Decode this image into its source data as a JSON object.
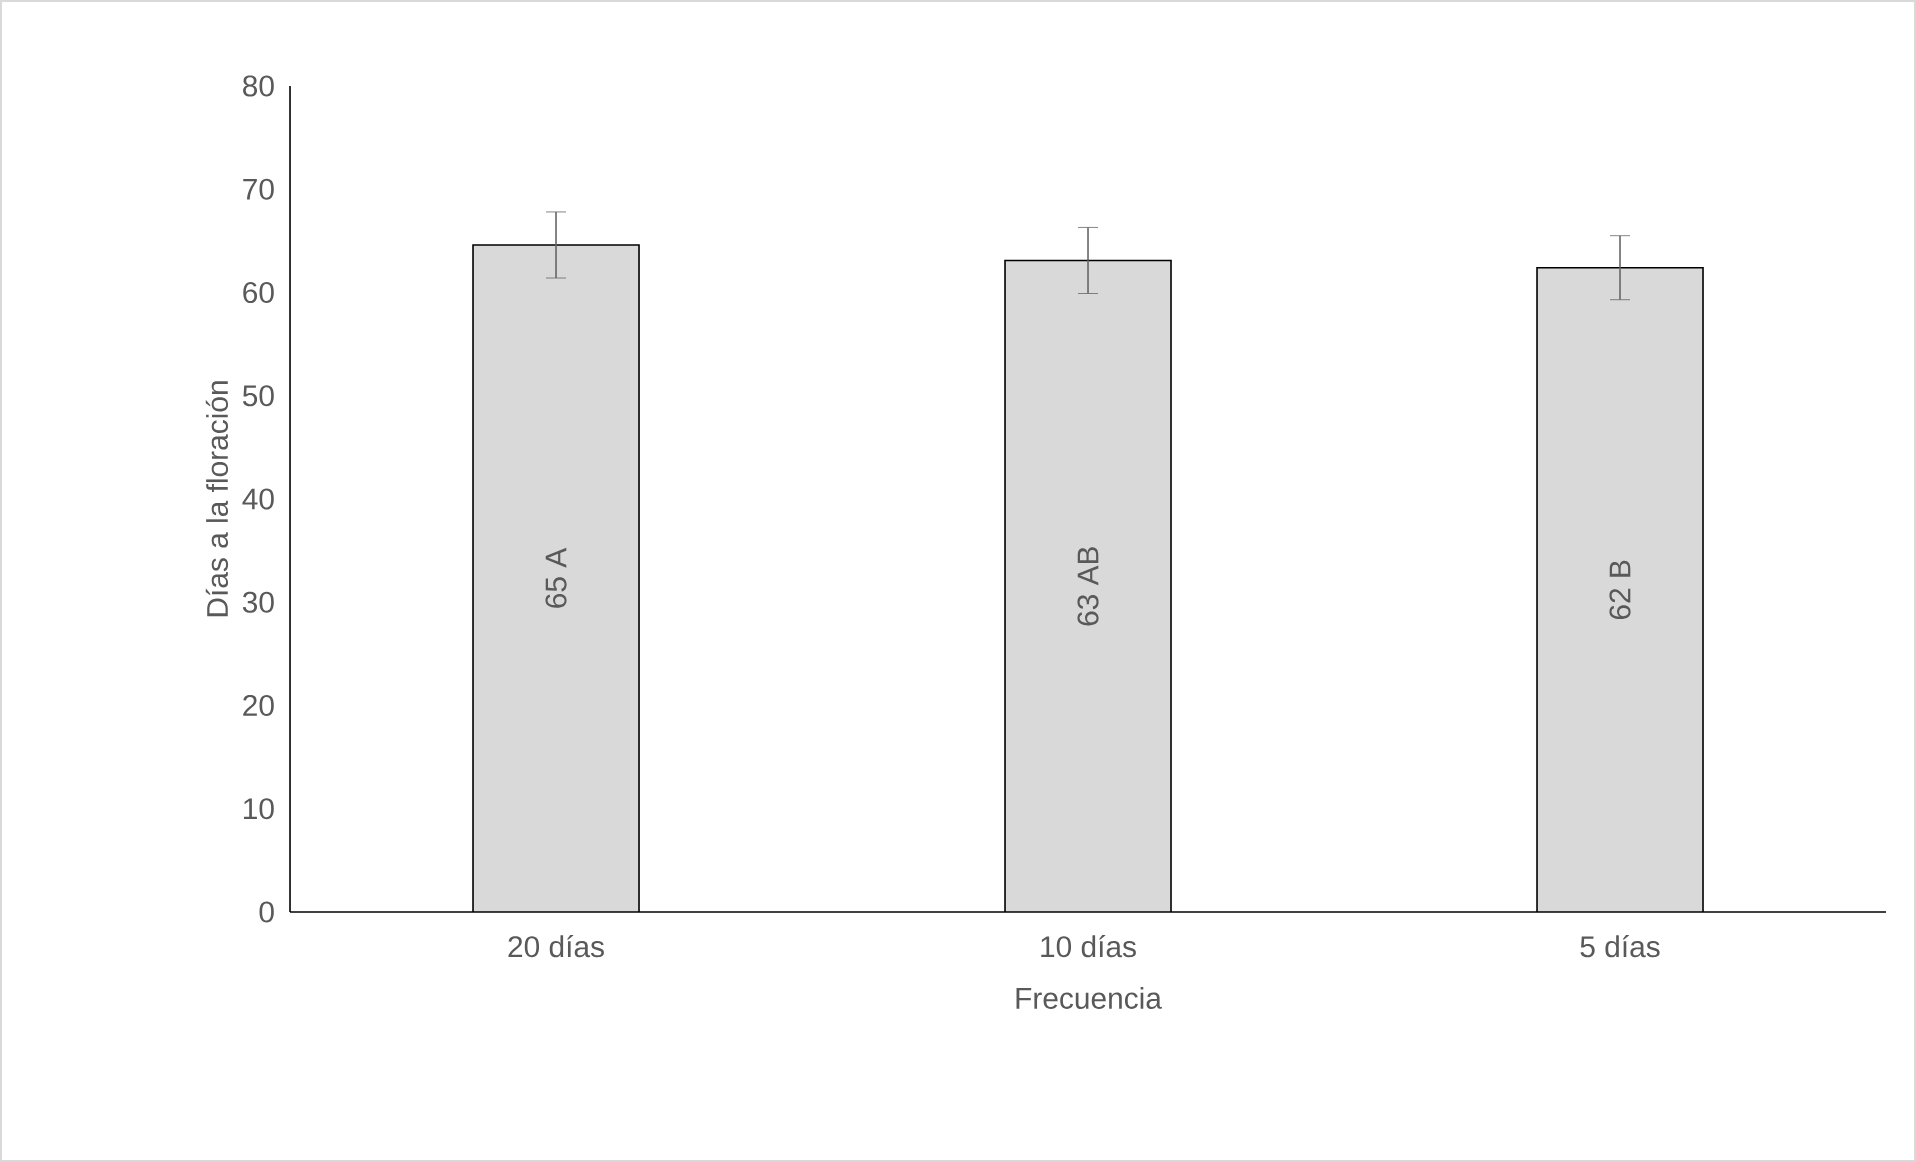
{
  "chart_data": {
    "type": "bar",
    "xlabel": "Frecuencia",
    "ylabel": "Días a la floración",
    "categories": [
      "20 días",
      "10 días",
      "5 días"
    ],
    "values": [
      64.6,
      63.1,
      62.4
    ],
    "errors": [
      3.2,
      3.2,
      3.1
    ],
    "value_labels": [
      "65 A",
      "63 AB",
      "62 B"
    ],
    "color": "#d9d9d9",
    "ylim": [
      0,
      80
    ],
    "yticks": [
      0,
      10,
      20,
      30,
      40,
      50,
      60,
      70,
      80
    ],
    "grid": false
  }
}
